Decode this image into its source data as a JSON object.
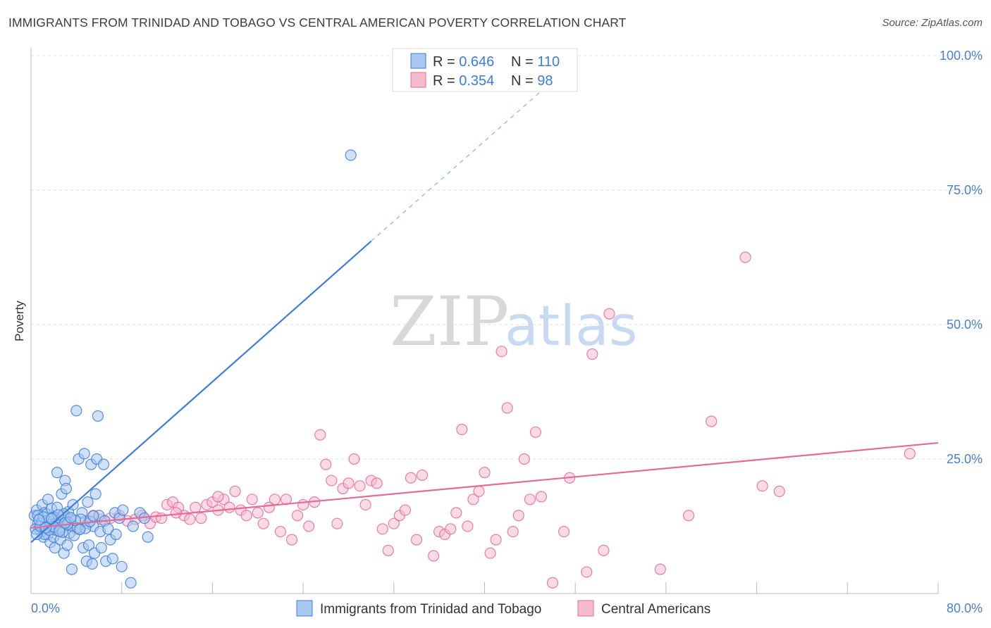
{
  "title": "IMMIGRANTS FROM TRINIDAD AND TOBAGO VS CENTRAL AMERICAN POVERTY CORRELATION CHART",
  "source": "Source: ZipAtlas.com",
  "colors": {
    "blue": "#3b7dd8",
    "pink": "#e46a97",
    "blue_fill": "#a9c8f0",
    "pink_fill": "#f6bccd",
    "tick_text": "#4a7fd0"
  },
  "chart_data": {
    "type": "scatter",
    "xlabel": "",
    "ylabel": "Poverty",
    "xlim": [
      0,
      80
    ],
    "ylim": [
      0,
      100
    ],
    "x_tick_labels": [
      "0.0%",
      "80.0%"
    ],
    "y_ticks": [
      {
        "value": 25,
        "label": "25.0%"
      },
      {
        "value": 50,
        "label": "50.0%"
      },
      {
        "value": 75,
        "label": "75.0%"
      },
      {
        "value": 100,
        "label": "100.0%"
      }
    ],
    "grid": true,
    "legend_position": "top-center",
    "watermark": {
      "a": "ZIP",
      "b": "atlas"
    },
    "stats": [
      {
        "r_label": "R = ",
        "r": "0.646",
        "n_label": "N = ",
        "n": "110"
      },
      {
        "r_label": "R = ",
        "r": "0.354",
        "n_label": "N = ",
        "n": "98"
      }
    ],
    "series": [
      {
        "name": "Immigrants from Trinidad and Tobago",
        "color": "#3b7dd8",
        "trend": {
          "x1": 0,
          "y1": 9.5,
          "x2": 30,
          "y2": 65.5,
          "dash_to_x": 48,
          "dash_to_y": 99
        },
        "points": [
          [
            0.3,
            14.5
          ],
          [
            0.5,
            15.5
          ],
          [
            0.6,
            13.0
          ],
          [
            0.7,
            12.0
          ],
          [
            0.8,
            14.0
          ],
          [
            0.9,
            11.5
          ],
          [
            1.0,
            16.5
          ],
          [
            1.0,
            13.5
          ],
          [
            1.1,
            10.5
          ],
          [
            1.2,
            15.0
          ],
          [
            1.3,
            12.5
          ],
          [
            1.4,
            14.8
          ],
          [
            1.5,
            11.0
          ],
          [
            1.5,
            17.5
          ],
          [
            1.6,
            13.2
          ],
          [
            1.7,
            9.5
          ],
          [
            1.8,
            15.8
          ],
          [
            1.9,
            12.8
          ],
          [
            2.0,
            10.5
          ],
          [
            2.0,
            14.2
          ],
          [
            2.1,
            8.5
          ],
          [
            2.2,
            11.8
          ],
          [
            2.3,
            22.5
          ],
          [
            2.3,
            16.0
          ],
          [
            2.4,
            13.5
          ],
          [
            2.5,
            12.0
          ],
          [
            2.6,
            10.0
          ],
          [
            2.7,
            18.5
          ],
          [
            2.8,
            14.5
          ],
          [
            2.9,
            7.5
          ],
          [
            3.0,
            21.0
          ],
          [
            3.0,
            12.5
          ],
          [
            3.1,
            19.5
          ],
          [
            3.2,
            9.0
          ],
          [
            3.3,
            15.2
          ],
          [
            3.4,
            11.2
          ],
          [
            3.5,
            13.8
          ],
          [
            3.6,
            4.5
          ],
          [
            3.7,
            16.5
          ],
          [
            3.8,
            10.8
          ],
          [
            4.0,
            34.0
          ],
          [
            4.2,
            25.0
          ],
          [
            4.3,
            12.0
          ],
          [
            4.5,
            15.0
          ],
          [
            4.6,
            8.5
          ],
          [
            4.7,
            26.0
          ],
          [
            4.9,
            6.0
          ],
          [
            5.0,
            13.0
          ],
          [
            5.0,
            17.0
          ],
          [
            5.1,
            9.0
          ],
          [
            5.3,
            24.0
          ],
          [
            5.4,
            5.5
          ],
          [
            5.5,
            12.5
          ],
          [
            5.6,
            7.5
          ],
          [
            5.7,
            18.5
          ],
          [
            5.8,
            25.0
          ],
          [
            5.9,
            33.0
          ],
          [
            6.0,
            14.5
          ],
          [
            6.1,
            11.5
          ],
          [
            6.2,
            8.5
          ],
          [
            6.4,
            24.0
          ],
          [
            6.5,
            13.5
          ],
          [
            6.6,
            6.0
          ],
          [
            6.8,
            12.0
          ],
          [
            7.0,
            10.0
          ],
          [
            7.2,
            6.5
          ],
          [
            7.4,
            15.0
          ],
          [
            7.5,
            11.0
          ],
          [
            7.8,
            14.0
          ],
          [
            8.0,
            5.0
          ],
          [
            8.1,
            15.5
          ],
          [
            8.8,
            2.0
          ],
          [
            9.0,
            12.5
          ],
          [
            9.6,
            15.0
          ],
          [
            10.0,
            14.0
          ],
          [
            10.3,
            10.5
          ],
          [
            0.4,
            12.0
          ],
          [
            0.6,
            14.5
          ],
          [
            0.9,
            13.0
          ],
          [
            1.2,
            11.0
          ],
          [
            1.4,
            13.5
          ],
          [
            1.7,
            12.8
          ],
          [
            1.9,
            14.0
          ],
          [
            2.2,
            13.0
          ],
          [
            2.6,
            12.3
          ],
          [
            2.9,
            14.8
          ],
          [
            3.3,
            13.2
          ],
          [
            3.6,
            12.6
          ],
          [
            4.1,
            12.2
          ],
          [
            4.4,
            13.8
          ],
          [
            0.5,
            11.0
          ],
          [
            0.8,
            12.5
          ],
          [
            1.1,
            14.2
          ],
          [
            1.6,
            11.8
          ],
          [
            2.0,
            12.4
          ],
          [
            2.4,
            14.6
          ],
          [
            2.8,
            11.4
          ],
          [
            3.2,
            12.8
          ],
          [
            3.9,
            13.6
          ],
          [
            4.8,
            12.1
          ],
          [
            5.2,
            13.4
          ],
          [
            5.5,
            14.4
          ],
          [
            0.7,
            13.7
          ],
          [
            1.3,
            12.2
          ],
          [
            1.8,
            13.9
          ],
          [
            2.5,
            11.6
          ],
          [
            3.0,
            13.1
          ],
          [
            3.5,
            14.1
          ],
          [
            4.3,
            11.9
          ],
          [
            28.2,
            81.5
          ]
        ]
      },
      {
        "name": "Central Americans",
        "color": "#e46a97",
        "trend": {
          "x1": 0,
          "y1": 12.2,
          "x2": 80,
          "y2": 28.0
        },
        "points": [
          [
            1.0,
            13.5
          ],
          [
            1.8,
            12.5
          ],
          [
            2.5,
            14.0
          ],
          [
            3.2,
            13.0
          ],
          [
            4.0,
            12.0
          ],
          [
            4.8,
            13.5
          ],
          [
            5.5,
            14.5
          ],
          [
            6.2,
            13.8
          ],
          [
            7.0,
            14.0
          ],
          [
            7.8,
            14.5
          ],
          [
            8.5,
            13.5
          ],
          [
            9.2,
            13.8
          ],
          [
            9.8,
            14.5
          ],
          [
            10.5,
            13.0
          ],
          [
            11.0,
            14.2
          ],
          [
            11.5,
            14.0
          ],
          [
            12.0,
            16.5
          ],
          [
            12.5,
            17.0
          ],
          [
            13.0,
            16.0
          ],
          [
            13.5,
            14.5
          ],
          [
            14.0,
            13.8
          ],
          [
            14.5,
            16.0
          ],
          [
            15.0,
            14.0
          ],
          [
            15.5,
            16.5
          ],
          [
            16.0,
            17.0
          ],
          [
            16.5,
            15.5
          ],
          [
            17.0,
            17.5
          ],
          [
            17.5,
            16.0
          ],
          [
            18.0,
            19.0
          ],
          [
            18.5,
            15.5
          ],
          [
            19.0,
            14.5
          ],
          [
            19.5,
            17.5
          ],
          [
            20.0,
            15.0
          ],
          [
            20.5,
            13.0
          ],
          [
            21.0,
            16.0
          ],
          [
            21.5,
            17.5
          ],
          [
            22.0,
            11.5
          ],
          [
            22.5,
            17.5
          ],
          [
            23.0,
            10.0
          ],
          [
            23.5,
            14.5
          ],
          [
            24.0,
            16.5
          ],
          [
            24.5,
            12.5
          ],
          [
            25.0,
            17.0
          ],
          [
            25.5,
            29.5
          ],
          [
            26.0,
            24.0
          ],
          [
            26.5,
            21.0
          ],
          [
            27.0,
            13.0
          ],
          [
            27.5,
            19.5
          ],
          [
            28.0,
            20.5
          ],
          [
            28.5,
            25.0
          ],
          [
            29.0,
            20.0
          ],
          [
            29.5,
            16.5
          ],
          [
            30.0,
            21.0
          ],
          [
            30.5,
            20.5
          ],
          [
            31.0,
            12.0
          ],
          [
            31.5,
            8.0
          ],
          [
            32.0,
            13.0
          ],
          [
            32.5,
            14.5
          ],
          [
            33.0,
            15.5
          ],
          [
            33.5,
            21.5
          ],
          [
            34.0,
            10.0
          ],
          [
            34.5,
            22.0
          ],
          [
            35.5,
            7.0
          ],
          [
            36.0,
            11.5
          ],
          [
            36.5,
            11.0
          ],
          [
            37.0,
            12.0
          ],
          [
            37.5,
            15.0
          ],
          [
            38.0,
            30.5
          ],
          [
            38.5,
            12.5
          ],
          [
            39.0,
            17.5
          ],
          [
            39.5,
            19.0
          ],
          [
            40.0,
            22.5
          ],
          [
            40.5,
            7.5
          ],
          [
            41.0,
            10.0
          ],
          [
            41.5,
            45.0
          ],
          [
            42.0,
            34.5
          ],
          [
            42.5,
            11.5
          ],
          [
            43.0,
            14.5
          ],
          [
            43.5,
            25.0
          ],
          [
            44.0,
            17.5
          ],
          [
            44.5,
            30.0
          ],
          [
            45.0,
            18.0
          ],
          [
            46.0,
            2.0
          ],
          [
            47.0,
            11.5
          ],
          [
            47.5,
            21.5
          ],
          [
            49.0,
            4.0
          ],
          [
            49.5,
            44.5
          ],
          [
            51.0,
            52.0
          ],
          [
            50.5,
            8.0
          ],
          [
            55.5,
            4.5
          ],
          [
            58.0,
            14.5
          ],
          [
            60.0,
            32.0
          ],
          [
            63.0,
            62.5
          ],
          [
            64.5,
            20.0
          ],
          [
            66.0,
            19.0
          ],
          [
            77.5,
            26.0
          ],
          [
            16.5,
            18.0
          ],
          [
            12.8,
            15.0
          ]
        ]
      }
    ]
  }
}
